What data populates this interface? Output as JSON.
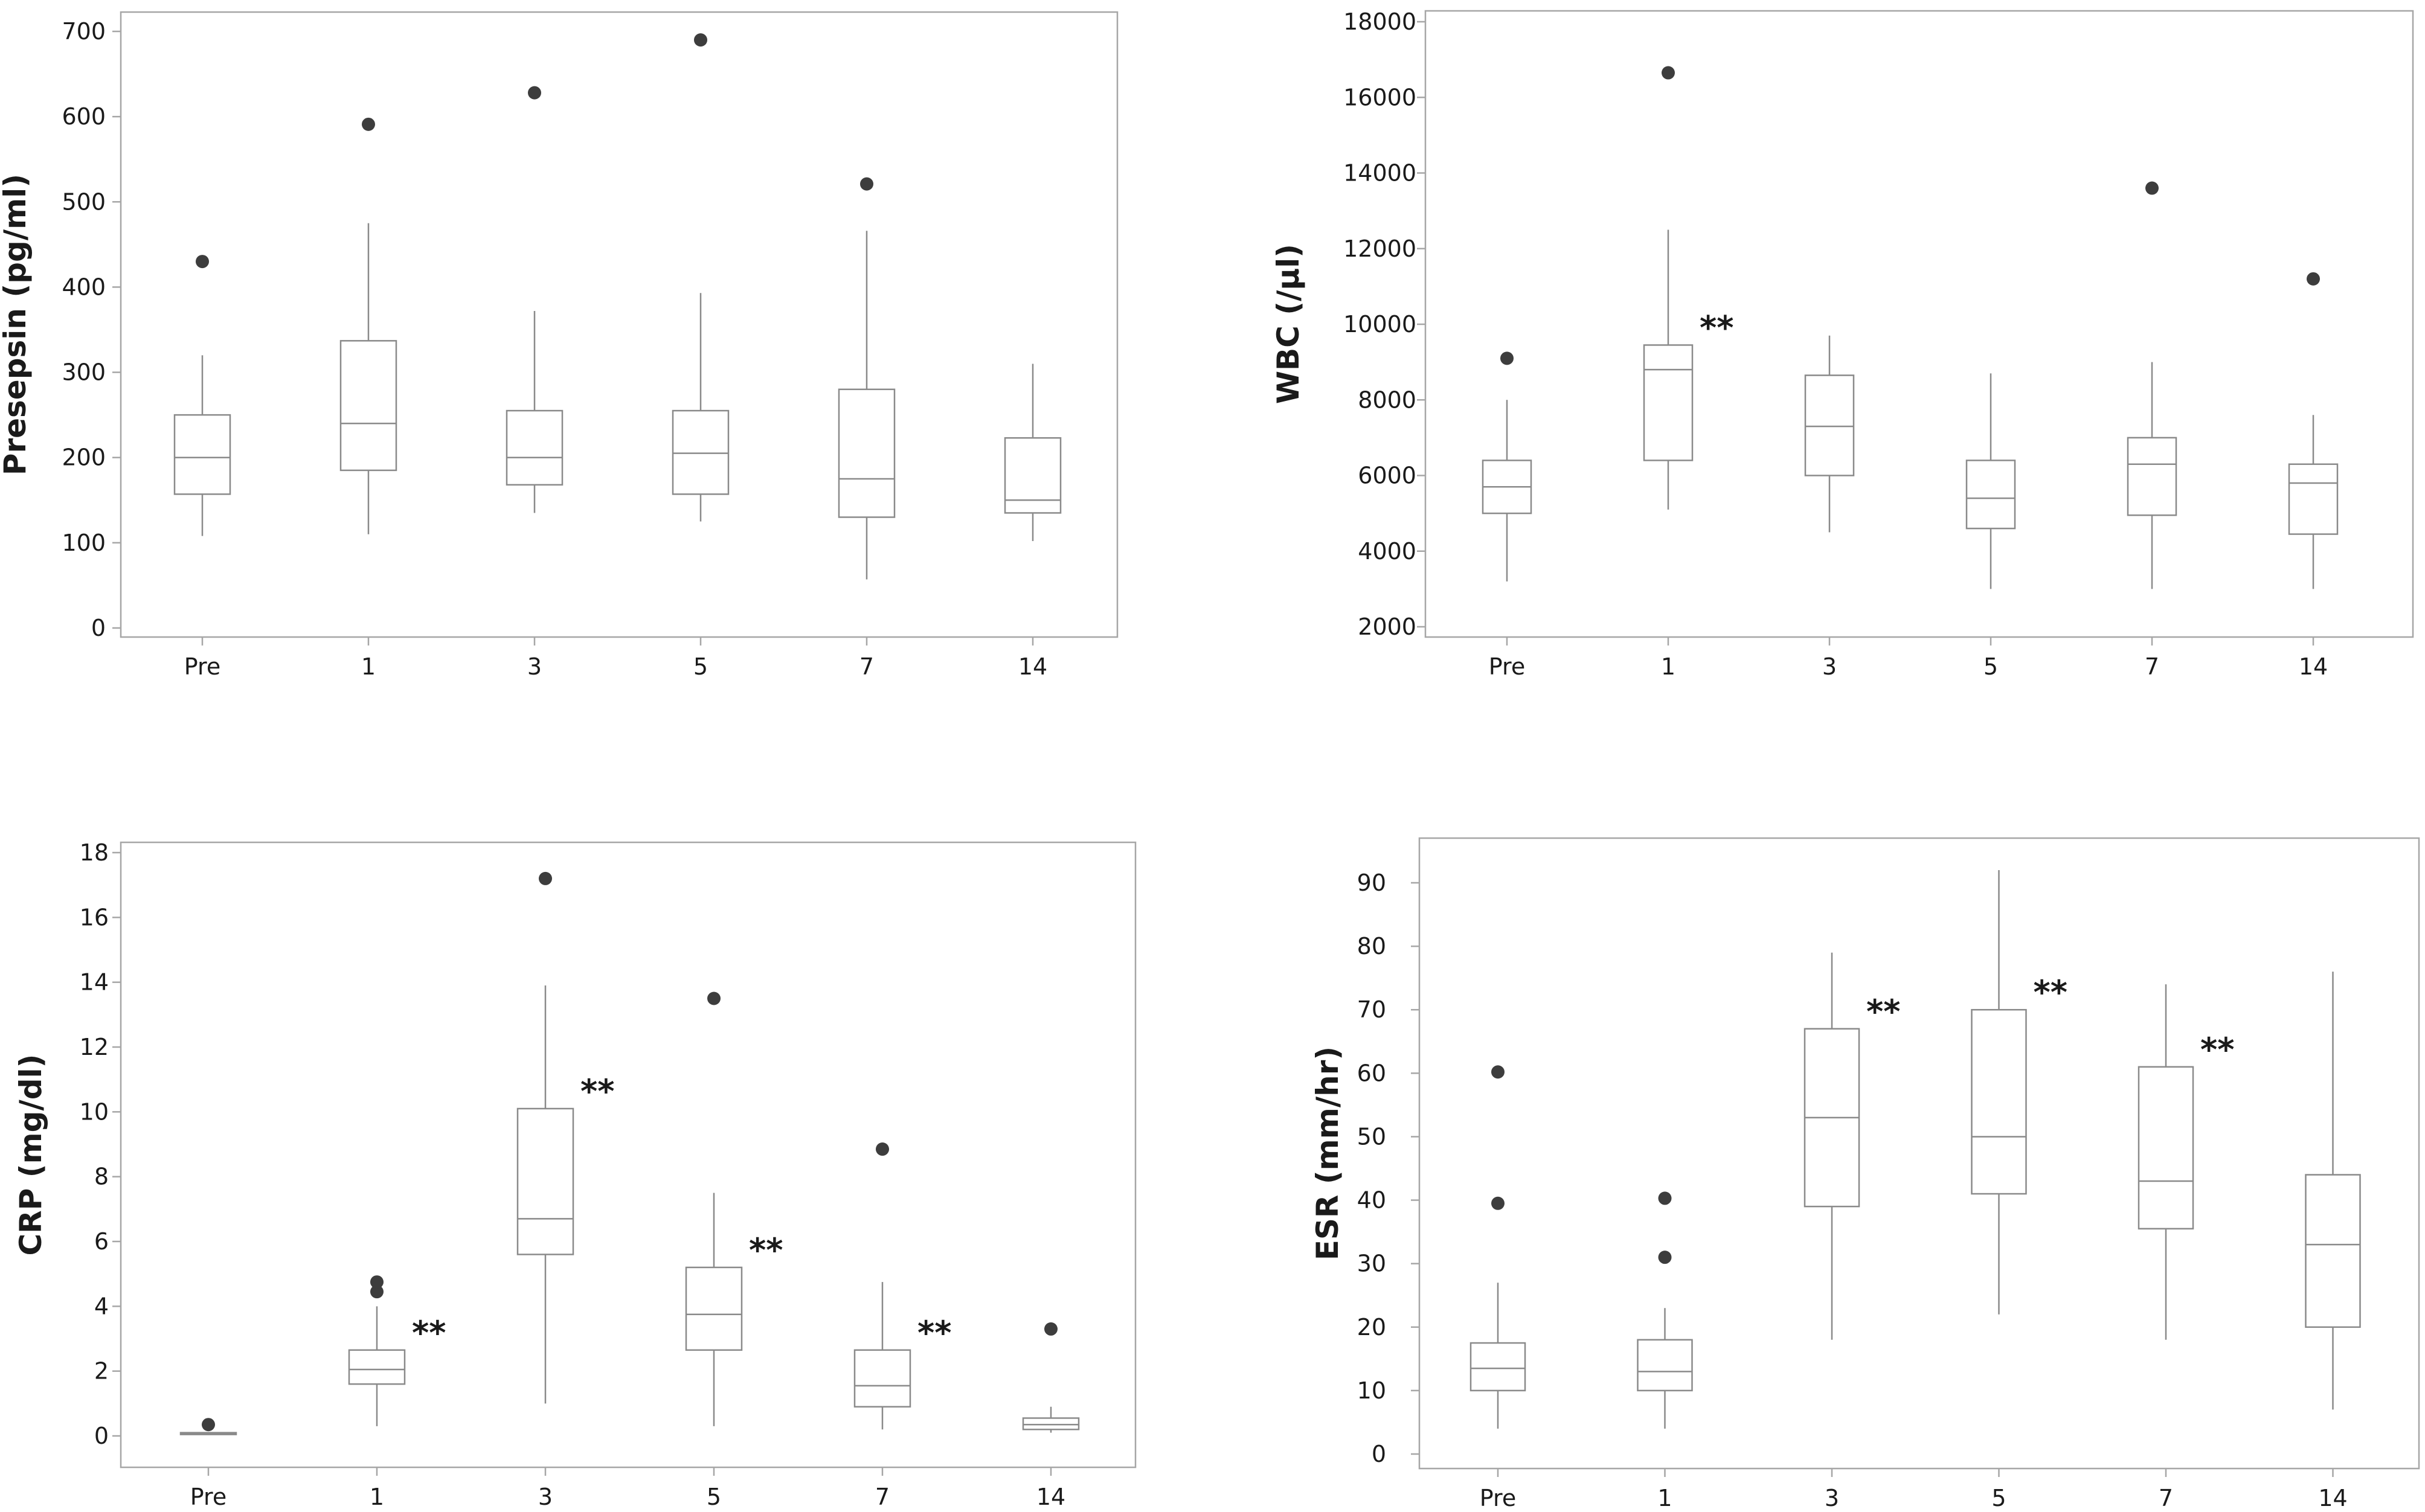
{
  "chart_data": [
    {
      "type": "box",
      "ylabel": "Presepsin (pg/ml)",
      "categories": [
        "Pre",
        "1",
        "3",
        "5",
        "7",
        "14"
      ],
      "ylim": [
        0,
        700
      ],
      "yticks": [
        0,
        100,
        200,
        300,
        400,
        500,
        600,
        700
      ],
      "ytick_labels": [
        "0",
        "100",
        "200",
        "300",
        "400",
        "500",
        "600",
        "700"
      ],
      "boxes": [
        {
          "whisker_low": 108,
          "q1": 157,
          "median": 200,
          "q3": 250,
          "whisker_high": 320,
          "outliers": [
            430
          ],
          "sig": ""
        },
        {
          "whisker_low": 110,
          "q1": 185,
          "median": 240,
          "q3": 337,
          "whisker_high": 475,
          "outliers": [
            591
          ],
          "sig": ""
        },
        {
          "whisker_low": 135,
          "q1": 168,
          "median": 200,
          "q3": 255,
          "whisker_high": 372,
          "outliers": [
            628
          ],
          "sig": ""
        },
        {
          "whisker_low": 125,
          "q1": 157,
          "median": 205,
          "q3": 255,
          "whisker_high": 393,
          "outliers": [
            690
          ],
          "sig": ""
        },
        {
          "whisker_low": 57,
          "q1": 130,
          "median": 175,
          "q3": 280,
          "whisker_high": 466,
          "outliers": [
            521
          ],
          "sig": ""
        },
        {
          "whisker_low": 102,
          "q1": 135,
          "median": 150,
          "q3": 223,
          "whisker_high": 310,
          "outliers": [],
          "sig": ""
        }
      ]
    },
    {
      "type": "box",
      "ylabel": "WBC (/µl)",
      "categories": [
        "Pre",
        "1",
        "3",
        "5",
        "7",
        "14"
      ],
      "ylim": [
        2000,
        18000
      ],
      "yticks": [
        2000,
        4000,
        6000,
        8000,
        10000,
        12000,
        14000,
        16000,
        18000
      ],
      "ytick_labels": [
        "2000",
        "4000",
        "6000",
        "8000",
        "10000",
        "12000",
        "14000",
        "16000",
        "18000"
      ],
      "boxes": [
        {
          "whisker_low": 3200,
          "q1": 5000,
          "median": 5700,
          "q3": 6400,
          "whisker_high": 8000,
          "outliers": [
            9100
          ],
          "sig": ""
        },
        {
          "whisker_low": 5100,
          "q1": 6400,
          "median": 8800,
          "q3": 9450,
          "whisker_high": 12500,
          "outliers": [
            16650
          ],
          "sig": "**"
        },
        {
          "whisker_low": 4500,
          "q1": 6000,
          "median": 7300,
          "q3": 8650,
          "whisker_high": 9700,
          "outliers": [],
          "sig": ""
        },
        {
          "whisker_low": 3000,
          "q1": 4600,
          "median": 5400,
          "q3": 6400,
          "whisker_high": 8700,
          "outliers": [],
          "sig": ""
        },
        {
          "whisker_low": 3000,
          "q1": 4950,
          "median": 6300,
          "q3": 7000,
          "whisker_high": 9000,
          "outliers": [
            13600
          ],
          "sig": ""
        },
        {
          "whisker_low": 3000,
          "q1": 4450,
          "median": 5800,
          "q3": 6300,
          "whisker_high": 7600,
          "outliers": [
            11200
          ],
          "sig": ""
        }
      ]
    },
    {
      "type": "box",
      "ylabel": "CRP (mg/dl)",
      "categories": [
        "Pre",
        "1",
        "3",
        "5",
        "7",
        "14"
      ],
      "ylim": [
        0,
        18
      ],
      "yticks": [
        0,
        2,
        4,
        6,
        8,
        10,
        12,
        14,
        16,
        18
      ],
      "ytick_labels": [
        "0",
        "2",
        "4",
        "6",
        "8",
        "10",
        "12",
        "14",
        "16",
        "18"
      ],
      "boxes": [
        {
          "whisker_low": 0.03,
          "q1": 0.05,
          "median": 0.07,
          "q3": 0.1,
          "whisker_high": 0.12,
          "outliers": [
            0.35
          ],
          "sig": ""
        },
        {
          "whisker_low": 0.3,
          "q1": 1.6,
          "median": 2.05,
          "q3": 2.65,
          "whisker_high": 4.0,
          "outliers": [
            4.45,
            4.75
          ],
          "sig": "**"
        },
        {
          "whisker_low": 1.0,
          "q1": 5.6,
          "median": 6.7,
          "q3": 10.1,
          "whisker_high": 13.9,
          "outliers": [
            17.2
          ],
          "sig": "**"
        },
        {
          "whisker_low": 0.3,
          "q1": 2.65,
          "median": 3.75,
          "q3": 5.2,
          "whisker_high": 7.5,
          "outliers": [
            13.5
          ],
          "sig": "**"
        },
        {
          "whisker_low": 0.2,
          "q1": 0.9,
          "median": 1.55,
          "q3": 2.65,
          "whisker_high": 4.75,
          "outliers": [
            8.85
          ],
          "sig": "**"
        },
        {
          "whisker_low": 0.1,
          "q1": 0.2,
          "median": 0.35,
          "q3": 0.55,
          "whisker_high": 0.9,
          "outliers": [
            3.3
          ],
          "sig": ""
        }
      ]
    },
    {
      "type": "box",
      "ylabel": "ESR (mm/hr)",
      "categories": [
        "Pre",
        "1",
        "3",
        "5",
        "7",
        "14"
      ],
      "ylim": [
        0,
        90
      ],
      "yticks": [
        0,
        10,
        20,
        30,
        40,
        50,
        60,
        70,
        80,
        90
      ],
      "ytick_labels": [
        "0",
        "10",
        "20",
        "30",
        "40",
        "50",
        "60",
        "70",
        "80",
        "90"
      ],
      "boxes": [
        {
          "whisker_low": 4,
          "q1": 10,
          "median": 13.5,
          "q3": 17.5,
          "whisker_high": 27,
          "outliers": [
            39.5,
            60.2
          ],
          "sig": ""
        },
        {
          "whisker_low": 4,
          "q1": 10,
          "median": 13,
          "q3": 18,
          "whisker_high": 23,
          "outliers": [
            31,
            40.3
          ],
          "sig": ""
        },
        {
          "whisker_low": 18,
          "q1": 39,
          "median": 53,
          "q3": 67,
          "whisker_high": 79,
          "outliers": [],
          "sig": "**"
        },
        {
          "whisker_low": 22,
          "q1": 41,
          "median": 50,
          "q3": 70,
          "whisker_high": 92,
          "outliers": [],
          "sig": "**"
        },
        {
          "whisker_low": 18,
          "q1": 35.5,
          "median": 43,
          "q3": 61,
          "whisker_high": 74,
          "outliers": [],
          "sig": "**"
        },
        {
          "whisker_low": 7,
          "q1": 20,
          "median": 33,
          "q3": 44,
          "whisker_high": 76,
          "outliers": [],
          "sig": ""
        }
      ]
    }
  ]
}
